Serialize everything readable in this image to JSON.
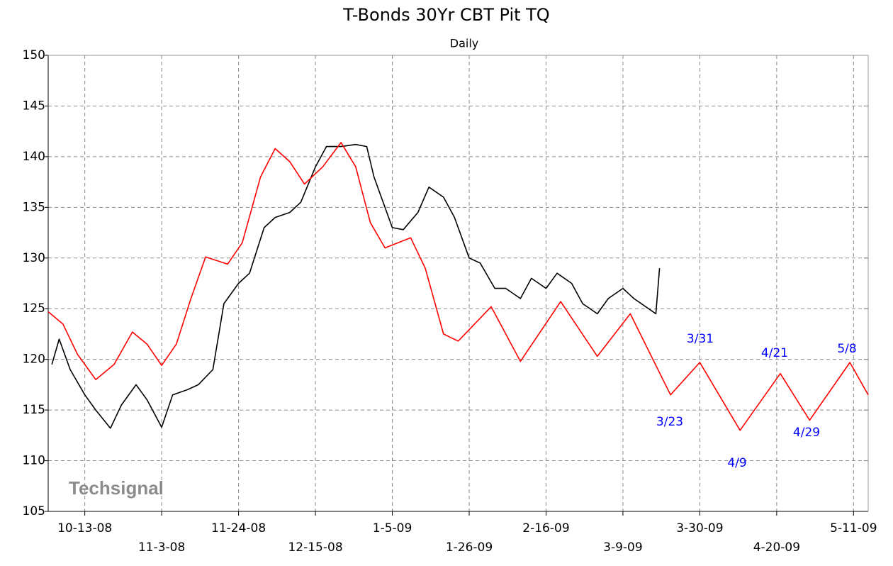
{
  "chart_data": {
    "type": "line",
    "title": "T-Bonds 30Yr CBT Pit TQ",
    "subtitle": "Daily",
    "watermark": "Techsignal",
    "xlim": [
      "2008-10-03",
      "2009-05-15"
    ],
    "xticks": [
      {
        "value": "2008-10-13",
        "label": "10-13-08"
      },
      {
        "value": "2008-11-03",
        "label": "11-3-08"
      },
      {
        "value": "2008-11-24",
        "label": "11-24-08"
      },
      {
        "value": "2008-12-15",
        "label": "12-15-08"
      },
      {
        "value": "2009-01-05",
        "label": "1-5-09"
      },
      {
        "value": "2009-01-26",
        "label": "1-26-09"
      },
      {
        "value": "2009-02-16",
        "label": "2-16-09"
      },
      {
        "value": "2009-03-09",
        "label": "3-9-09"
      },
      {
        "value": "2009-03-30",
        "label": "3-30-09"
      },
      {
        "value": "2009-04-20",
        "label": "4-20-09"
      },
      {
        "value": "2009-05-11",
        "label": "5-11-09"
      }
    ],
    "ylim": [
      105,
      150
    ],
    "yticks": [
      105,
      110,
      115,
      120,
      125,
      130,
      135,
      140,
      145,
      150
    ],
    "grid": true,
    "series": [
      {
        "color": "#000000",
        "x": [
          "2008-10-04",
          "2008-10-06",
          "2008-10-09",
          "2008-10-13",
          "2008-10-16",
          "2008-10-20",
          "2008-10-23",
          "2008-10-27",
          "2008-10-30",
          "2008-11-03",
          "2008-11-06",
          "2008-11-10",
          "2008-11-13",
          "2008-11-17",
          "2008-11-20",
          "2008-11-24",
          "2008-11-27",
          "2008-12-01",
          "2008-12-04",
          "2008-12-08",
          "2008-12-11",
          "2008-12-15",
          "2008-12-18",
          "2008-12-22",
          "2008-12-26",
          "2008-12-29",
          "2008-12-31",
          "2009-01-05",
          "2009-01-08",
          "2009-01-12",
          "2009-01-15",
          "2009-01-19",
          "2009-01-22",
          "2009-01-26",
          "2009-01-29",
          "2009-02-02",
          "2009-02-05",
          "2009-02-09",
          "2009-02-12",
          "2009-02-16",
          "2009-02-19",
          "2009-02-23",
          "2009-02-26",
          "2009-03-02",
          "2009-03-05",
          "2009-03-09",
          "2009-03-12",
          "2009-03-16",
          "2009-03-18",
          "2009-03-19"
        ],
        "values": [
          119.5,
          122,
          119,
          116.5,
          115,
          113.2,
          115.5,
          117.5,
          116,
          113.3,
          116.5,
          117,
          117.5,
          119,
          125.5,
          127.5,
          128.5,
          133,
          134,
          134.5,
          135.5,
          139,
          141,
          141,
          141.2,
          141,
          138,
          133,
          132.8,
          134.5,
          137,
          136,
          134,
          130,
          129.5,
          127,
          127,
          126,
          128,
          127,
          128.5,
          127.5,
          125.5,
          124.5,
          126,
          127,
          126,
          125,
          124.5,
          129
        ]
      },
      {
        "color": "#ff0000",
        "x": [
          "2008-10-03",
          "2008-10-07",
          "2008-10-11",
          "2008-10-16",
          "2008-10-21",
          "2008-10-26",
          "2008-10-30",
          "2008-11-03",
          "2008-11-07",
          "2008-11-11",
          "2008-11-15",
          "2008-11-21",
          "2008-11-25",
          "2008-11-30",
          "2008-12-04",
          "2008-12-08",
          "2008-12-12",
          "2008-12-17",
          "2008-12-22",
          "2008-12-26",
          "2008-12-30",
          "2009-01-03",
          "2009-01-10",
          "2009-01-14",
          "2009-01-19",
          "2009-01-23",
          "2009-02-01",
          "2009-02-09",
          "2009-02-20",
          "2009-03-02",
          "2009-03-11",
          "2009-03-22",
          "2009-03-30",
          "2009-04-10",
          "2009-04-21",
          "2009-04-29",
          "2009-05-10",
          "2009-05-15"
        ],
        "values": [
          124.7,
          123.5,
          120.5,
          118,
          119.5,
          122.7,
          121.5,
          119.4,
          121.5,
          126,
          130.1,
          129.4,
          131.5,
          138,
          140.8,
          139.5,
          137.3,
          139,
          141.4,
          139,
          133.5,
          131,
          132,
          129,
          122.5,
          121.8,
          125.2,
          119.8,
          125.7,
          120.3,
          124.5,
          116.5,
          119.7,
          113,
          118.6,
          114,
          119.7,
          116.5
        ]
      }
    ],
    "annotations": [
      "3/31",
      "3/23",
      "4/9",
      "4/21",
      "4/29",
      "5/8"
    ],
    "annotation_color": "#0000ff"
  }
}
